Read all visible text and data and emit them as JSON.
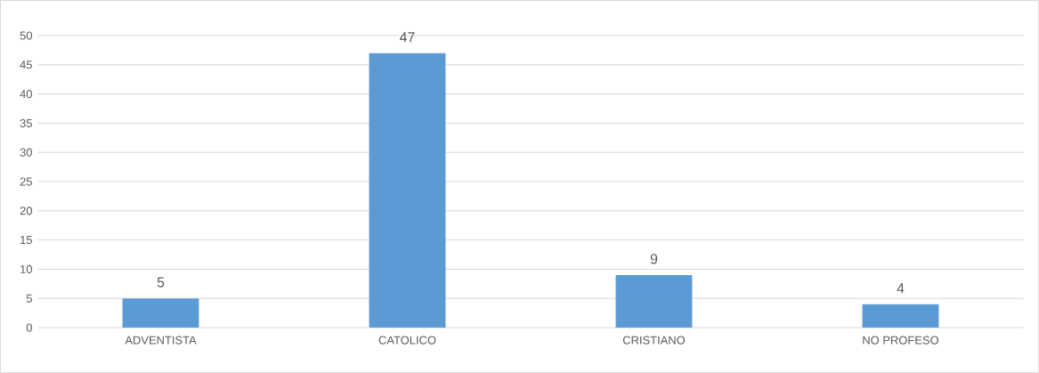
{
  "chart_data": {
    "type": "bar",
    "categories": [
      "ADVENTISTA",
      "CATOLICO",
      "CRISTIANO",
      "NO PROFESO"
    ],
    "values": [
      5,
      47,
      9,
      4
    ],
    "color": "#5b9bd5",
    "ylim": [
      0,
      50
    ],
    "yticks": [
      0,
      5,
      10,
      15,
      20,
      25,
      30,
      35,
      40,
      45,
      50
    ],
    "grid": "y",
    "data_labels": true
  }
}
